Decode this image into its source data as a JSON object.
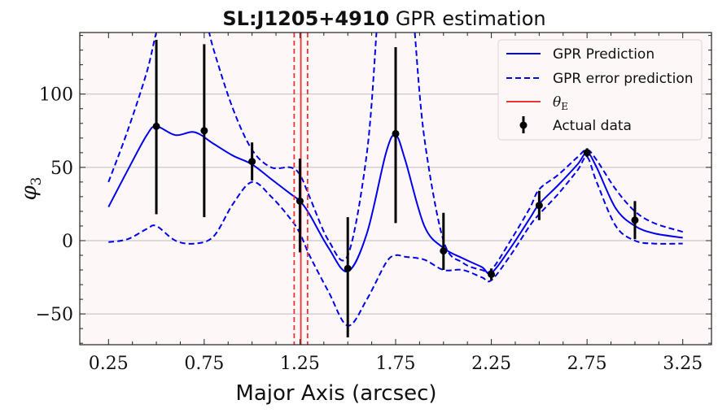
{
  "chart_data": {
    "type": "line",
    "title_bold": "SL:J1205+4910",
    "title_rest": " GPR estimation",
    "xlabel": "Major Axis (arcsec)",
    "ylabel": "φ",
    "ylabel_sub": "3",
    "xlim": [
      0.1,
      3.4
    ],
    "ylim": [
      -71,
      142
    ],
    "xticks": [
      0.25,
      0.75,
      1.25,
      1.75,
      2.25,
      2.75,
      3.25
    ],
    "xtick_labels": [
      "0.25",
      "0.75",
      "1.25",
      "1.75",
      "2.25",
      "2.75",
      "3.25"
    ],
    "yticks": [
      -50,
      0,
      50,
      100
    ],
    "ytick_labels": [
      "−50",
      "0",
      "50",
      "100"
    ],
    "grid": "horizontal",
    "legend_position": "top-right",
    "colors": {
      "prediction": "#0000ee",
      "theta": "#ee3333",
      "data": "#000000",
      "plot_bg": "#fdf8f7"
    },
    "series": [
      {
        "name": "GPR Prediction",
        "style": "solid",
        "x": [
          0.25,
          0.35,
          0.45,
          0.5,
          0.6,
          0.7,
          0.8,
          0.9,
          1.0,
          1.1,
          1.2,
          1.25,
          1.3,
          1.4,
          1.5,
          1.6,
          1.7,
          1.75,
          1.8,
          1.9,
          2.0,
          2.1,
          2.2,
          2.25,
          2.35,
          2.45,
          2.5,
          2.6,
          2.7,
          2.75,
          2.8,
          2.9,
          3.0,
          3.1,
          3.25
        ],
        "y": [
          23,
          48,
          72,
          78,
          72,
          74,
          66,
          58,
          52,
          42,
          32,
          27,
          18,
          -5,
          -21,
          5,
          60,
          72,
          55,
          10,
          -5,
          -12,
          -18,
          -22,
          -5,
          15,
          25,
          38,
          52,
          60,
          50,
          22,
          10,
          5,
          2
        ]
      },
      {
        "name": "GPR error prediction",
        "style": "dashed",
        "x": [
          0.25,
          0.35,
          0.45,
          0.5,
          0.55,
          0.6
        ],
        "y": [
          40,
          75,
          115,
          142,
          160,
          175
        ]
      },
      {
        "name": "",
        "style": "dashed",
        "x": [
          0.7,
          0.75,
          0.8,
          0.9,
          1.0,
          1.1,
          1.2,
          1.25,
          1.3,
          1.4,
          1.5,
          1.6,
          1.65
        ],
        "y": [
          165,
          155,
          130,
          90,
          62,
          50,
          50,
          45,
          30,
          0,
          -10,
          60,
          142
        ]
      },
      {
        "name": "",
        "style": "dashed",
        "x": [
          1.85,
          1.9,
          2.0,
          2.1,
          2.2,
          2.25,
          2.35,
          2.45,
          2.5,
          2.6,
          2.7,
          2.75,
          2.8,
          2.9,
          3.0,
          3.1,
          3.25
        ],
        "y": [
          142,
          70,
          0,
          -15,
          -20,
          -20,
          0,
          22,
          35,
          45,
          57,
          62,
          55,
          35,
          20,
          12,
          6
        ]
      },
      {
        "name": "",
        "style": "dashed",
        "x": [
          0.25,
          0.35,
          0.45,
          0.5,
          0.6,
          0.7,
          0.8,
          0.9,
          1.0,
          1.1,
          1.2,
          1.25,
          1.3,
          1.4,
          1.5,
          1.6,
          1.7,
          1.75,
          1.8,
          1.9,
          2.0,
          2.1,
          2.2,
          2.25,
          2.35,
          2.45,
          2.5,
          2.6,
          2.7,
          2.75,
          2.8,
          2.9,
          3.0,
          3.1,
          3.25
        ],
        "y": [
          -1,
          1,
          8,
          10,
          0,
          -2,
          3,
          25,
          40,
          30,
          15,
          5,
          -10,
          -35,
          -58,
          -40,
          -15,
          -10,
          -11,
          -13,
          -20,
          -20,
          -25,
          -27,
          -10,
          10,
          18,
          32,
          48,
          57,
          40,
          10,
          0,
          -2,
          -2
        ]
      }
    ],
    "reference_lines": [
      {
        "name": "θ",
        "name_sub": "E",
        "x": 1.255,
        "style": "solid"
      },
      {
        "name": "",
        "x": 1.22,
        "style": "dashed"
      },
      {
        "name": "",
        "x": 1.29,
        "style": "dashed"
      }
    ],
    "actual_data": {
      "name": "Actual data",
      "points": [
        {
          "x": 0.5,
          "y": 78,
          "err_low": 18,
          "err_high": 137
        },
        {
          "x": 0.75,
          "y": 75,
          "err_low": 16,
          "err_high": 134
        },
        {
          "x": 1.0,
          "y": 54,
          "err_low": 41,
          "err_high": 67
        },
        {
          "x": 1.25,
          "y": 27,
          "err_low": -8,
          "err_high": 56
        },
        {
          "x": 1.5,
          "y": -19,
          "err_low": -66,
          "err_high": 16
        },
        {
          "x": 1.75,
          "y": 73,
          "err_low": 12,
          "err_high": 132
        },
        {
          "x": 2.0,
          "y": -7,
          "err_low": -20,
          "err_high": 19
        },
        {
          "x": 2.25,
          "y": -23,
          "err_low": -27,
          "err_high": -19
        },
        {
          "x": 2.5,
          "y": 24,
          "err_low": 14,
          "err_high": 34
        },
        {
          "x": 2.75,
          "y": 60,
          "err_low": 57,
          "err_high": 63
        },
        {
          "x": 3.0,
          "y": 14,
          "err_low": 1,
          "err_high": 27
        }
      ]
    },
    "legend": [
      {
        "label": "GPR Prediction",
        "kind": "solid-line"
      },
      {
        "label": "GPR error prediction",
        "kind": "dashed-line"
      },
      {
        "label": "θ",
        "sub": "E",
        "kind": "red-line"
      },
      {
        "label": "Actual data",
        "kind": "errorbar"
      }
    ]
  }
}
